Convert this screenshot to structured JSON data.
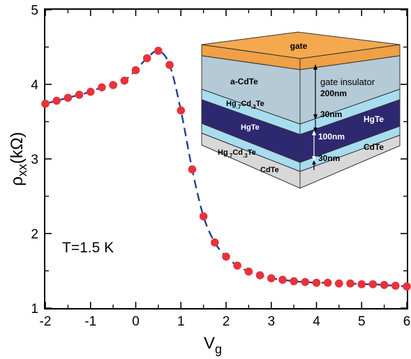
{
  "chart_data": {
    "type": "line",
    "xlabel": "V",
    "xlabel_sub": "g",
    "ylabel": "ρ",
    "ylabel_sub": "xx",
    "ylabel_unit": "(kΩ)",
    "xlim": [
      -2,
      6
    ],
    "ylim": [
      1,
      5
    ],
    "x_ticks": [
      -2,
      -1,
      0,
      1,
      2,
      3,
      4,
      5,
      6
    ],
    "y_ticks": [
      1,
      2,
      3,
      4,
      5
    ],
    "annotation": "T=1.5 K",
    "grid": false,
    "colors": {
      "points": "#e8323a",
      "curve": "#1f3f8f"
    },
    "series": [
      {
        "x": [
          -2.0,
          -1.75,
          -1.5,
          -1.25,
          -1.0,
          -0.75,
          -0.5,
          -0.25,
          0.0,
          0.25,
          0.5,
          0.75,
          1.0,
          1.25,
          1.5,
          1.75,
          2.0,
          2.25,
          2.5,
          2.75,
          3.0,
          3.25,
          3.5,
          3.75,
          4.0,
          4.25,
          4.5,
          4.75,
          5.0,
          5.25,
          5.5,
          5.75,
          6.0
        ],
        "values": [
          3.74,
          3.78,
          3.82,
          3.86,
          3.9,
          3.96,
          3.99,
          4.05,
          4.19,
          4.35,
          4.45,
          4.26,
          3.65,
          2.86,
          2.23,
          1.88,
          1.69,
          1.57,
          1.49,
          1.44,
          1.4,
          1.38,
          1.36,
          1.35,
          1.34,
          1.34,
          1.33,
          1.33,
          1.32,
          1.32,
          1.31,
          1.3,
          1.29
        ]
      }
    ],
    "inset": {
      "layers_front": [
        {
          "label": "gate",
          "color": "#f0a046"
        },
        {
          "label": "a-CdTe",
          "color": "#b4cad6"
        },
        {
          "label": "Hg.7Cd.3Te",
          "color": "#a8dcef"
        },
        {
          "label": "HgTe",
          "color": "#2e2870"
        },
        {
          "label": "Hg.7Cd.3Te",
          "color": "#a8dcef"
        },
        {
          "label": "CdTe",
          "color": "#d8d8d8"
        }
      ],
      "side_labels": {
        "gate_insulator": "gate insulator",
        "gate_insulator_thickness": "200nm",
        "barrier_thickness_top": "30nm",
        "well_label": "HgTe",
        "well_thickness": "100nm",
        "substrate_label": "CdTe",
        "barrier_thickness_bottom": "30nm"
      },
      "front_labels": {
        "gate": "gate",
        "insulator": "a-CdTe",
        "barrier_top_main": "Hg",
        "barrier_top_sub1": ".7",
        "barrier_top_mid": "Cd",
        "barrier_top_sub2": ".3",
        "barrier_top_end": "Te",
        "well": "HgTe",
        "substrate": "CdTe"
      }
    }
  }
}
